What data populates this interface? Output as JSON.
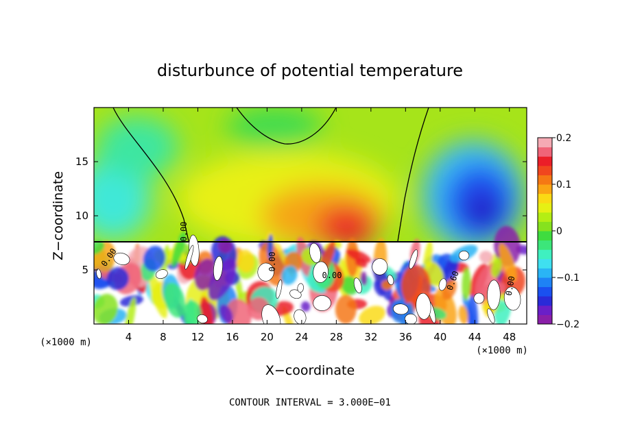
{
  "chart_data": {
    "type": "heatmap",
    "title": "disturbunce of potential temperature",
    "xlabel": "X−coordinate",
    "ylabel": "Z−coordinate",
    "x_unit_label_left": "(×1000 m)",
    "x_unit_label_right": "(×1000 m)",
    "footer": "CONTOUR INTERVAL = 3.000E−01",
    "xlim": [
      0,
      50
    ],
    "ylim": [
      0,
      20
    ],
    "x_ticks": [
      4,
      8,
      12,
      16,
      20,
      24,
      28,
      32,
      36,
      40,
      44,
      48
    ],
    "y_ticks": [
      5,
      10,
      15
    ],
    "colorbar": {
      "min": -0.2,
      "max": 0.2,
      "ticks": [
        "0.2",
        "0.1",
        "0",
        "−0.1",
        "−0.2"
      ],
      "tick_values": [
        0.2,
        0.1,
        0,
        -0.1,
        -0.2
      ],
      "colors": [
        "#8a1fa8",
        "#6a1fc8",
        "#2a2ad8",
        "#1a50f0",
        "#1e82f5",
        "#2ab4f5",
        "#3fe0f0",
        "#3ff0c0",
        "#3ce67a",
        "#3fdc3f",
        "#86e21e",
        "#b4ee14",
        "#e6f014",
        "#fada14",
        "#faa514",
        "#f57814",
        "#f0461e",
        "#eb1e28",
        "#f06478",
        "#f5aab4"
      ]
    },
    "contour_labels": [
      "0.00",
      "0.00",
      "0.00",
      "0.00",
      "0.60",
      "0.00"
    ],
    "upper_layer": {
      "z_range": [
        7.6,
        20
      ],
      "regions": [
        {
          "name": "warm core",
          "x": 28,
          "z": 9.5,
          "value": 0.15
        },
        {
          "name": "warm plateau",
          "x": 24,
          "z": 12,
          "value": 0.06
        },
        {
          "name": "cold pool",
          "x": 44,
          "z": 11,
          "value": -0.18
        },
        {
          "name": "cool west",
          "x": 3,
          "z": 12,
          "value": -0.05
        },
        {
          "name": "neutral aloft",
          "x": 20,
          "z": 18,
          "value": 0.01
        }
      ]
    },
    "lower_layer": {
      "z_range": [
        0,
        7.6
      ],
      "description_value_range": [
        -0.2,
        0.2
      ]
    },
    "colors": {
      "frame": "#000000",
      "background": "#ffffff"
    }
  }
}
